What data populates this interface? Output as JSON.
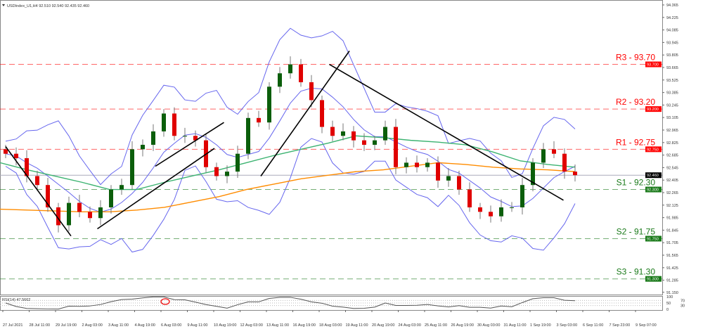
{
  "header": {
    "symbol": "USDIndex_U1,H4",
    "ohlc": "92.510 92.540 92.435 92.460"
  },
  "chart_data": {
    "type": "candlestick",
    "ylim": [
      91.15,
      94.4
    ],
    "y_ticks": [
      "94.365",
      "94.225",
      "94.085",
      "93.945",
      "93.805",
      "93.665",
      "93.525",
      "93.385",
      "93.245",
      "93.105",
      "92.965",
      "92.825",
      "92.685",
      "92.545",
      "92.405",
      "92.265",
      "92.125",
      "91.985",
      "91.845",
      "91.705",
      "91.565",
      "91.425",
      "91.285",
      "91.150"
    ],
    "x_ticks": [
      "27 Jul 2021",
      "28 Jul 11:00",
      "29 Jul 19:00",
      "2 Aug 03:00",
      "3 Aug 11:00",
      "4 Aug 19:00",
      "6 Aug 03:00",
      "9 Aug 11:00",
      "10 Aug 19:00",
      "12 Aug 03:00",
      "13 Aug 11:00",
      "16 Aug 19:00",
      "18 Aug 03:00",
      "19 Aug 11:00",
      "20 Aug 19:00",
      "24 Aug 03:00",
      "25 Aug 11:00",
      "26 Aug 19:00",
      "30 Aug 03:00",
      "31 Aug 11:00",
      "1 Sep 19:00",
      "3 Sep 03:00",
      "6 Sep 11:00",
      "7 Sep 23:00",
      "9 Sep 07:00"
    ],
    "closes": [
      92.7,
      92.65,
      92.45,
      92.35,
      92.1,
      91.9,
      92.15,
      92.05,
      91.98,
      92.1,
      92.3,
      92.35,
      92.75,
      92.8,
      92.95,
      93.15,
      92.9,
      92.9,
      92.85,
      92.55,
      92.45,
      92.5,
      92.7,
      93.1,
      93.05,
      93.45,
      93.6,
      93.7,
      93.5,
      93.3,
      93.0,
      92.9,
      92.95,
      92.85,
      92.8,
      92.85,
      93.0,
      92.55,
      92.6,
      92.55,
      92.6,
      92.4,
      92.45,
      92.3,
      92.1,
      92.05,
      92.0,
      92.1,
      92.1,
      92.35,
      92.6,
      92.75,
      92.7,
      92.5,
      92.46
    ],
    "ma_green": [
      92.6,
      92.52,
      92.45,
      92.38,
      92.3,
      92.3,
      92.38,
      92.45,
      92.52,
      92.6,
      92.68,
      92.75,
      92.82,
      92.9,
      92.88,
      92.85,
      92.83,
      92.8,
      92.72,
      92.62,
      92.58,
      92.55
    ],
    "ma_orange": [
      92.08,
      92.07,
      92.06,
      92.05,
      92.05,
      92.07,
      92.1,
      92.16,
      92.22,
      92.3,
      92.36,
      92.42,
      92.46,
      92.5,
      92.52,
      92.56,
      92.6,
      92.58,
      92.55,
      92.53,
      92.52,
      92.5
    ],
    "current_price": "92.460",
    "levels": [
      {
        "label": "R3 - 93.70",
        "tag": "93.700",
        "price": 93.7,
        "color": "#ff0000"
      },
      {
        "label": "R2 - 93.20",
        "tag": "93.200",
        "price": 93.2,
        "color": "#ff0000"
      },
      {
        "label": "R1 - 92.75",
        "tag": "92.750",
        "price": 92.75,
        "color": "#ff0000"
      },
      {
        "label": "S1 - 92.30",
        "tag": "92.300",
        "price": 92.3,
        "color": "#1a7a1a"
      },
      {
        "label": "S2 - 91.75",
        "tag": "91.750",
        "price": 91.75,
        "color": "#1a7a1a"
      },
      {
        "label": "S3 - 91.30",
        "tag": "91.300",
        "price": 91.3,
        "color": "#1a7a1a"
      }
    ],
    "trendlines": [
      [
        0,
        92.78,
        6.2,
        91.78
      ],
      [
        8.7,
        91.86,
        19.8,
        92.76
      ],
      [
        14.2,
        92.56,
        20.7,
        93.05
      ],
      [
        24.2,
        92.45,
        32.6,
        93.85
      ],
      [
        30.7,
        93.7,
        52.9,
        92.18
      ]
    ],
    "rsi": {
      "label": "RSI(14) 47.5662",
      "levels": [
        "100",
        "70",
        "50",
        "30",
        "0"
      ]
    },
    "colors": {
      "up": "#0b5e0b",
      "down": "#e00000",
      "bands": "#6666ee",
      "ma_green": "#3cb371",
      "ma_orange": "#ff8c00"
    }
  }
}
